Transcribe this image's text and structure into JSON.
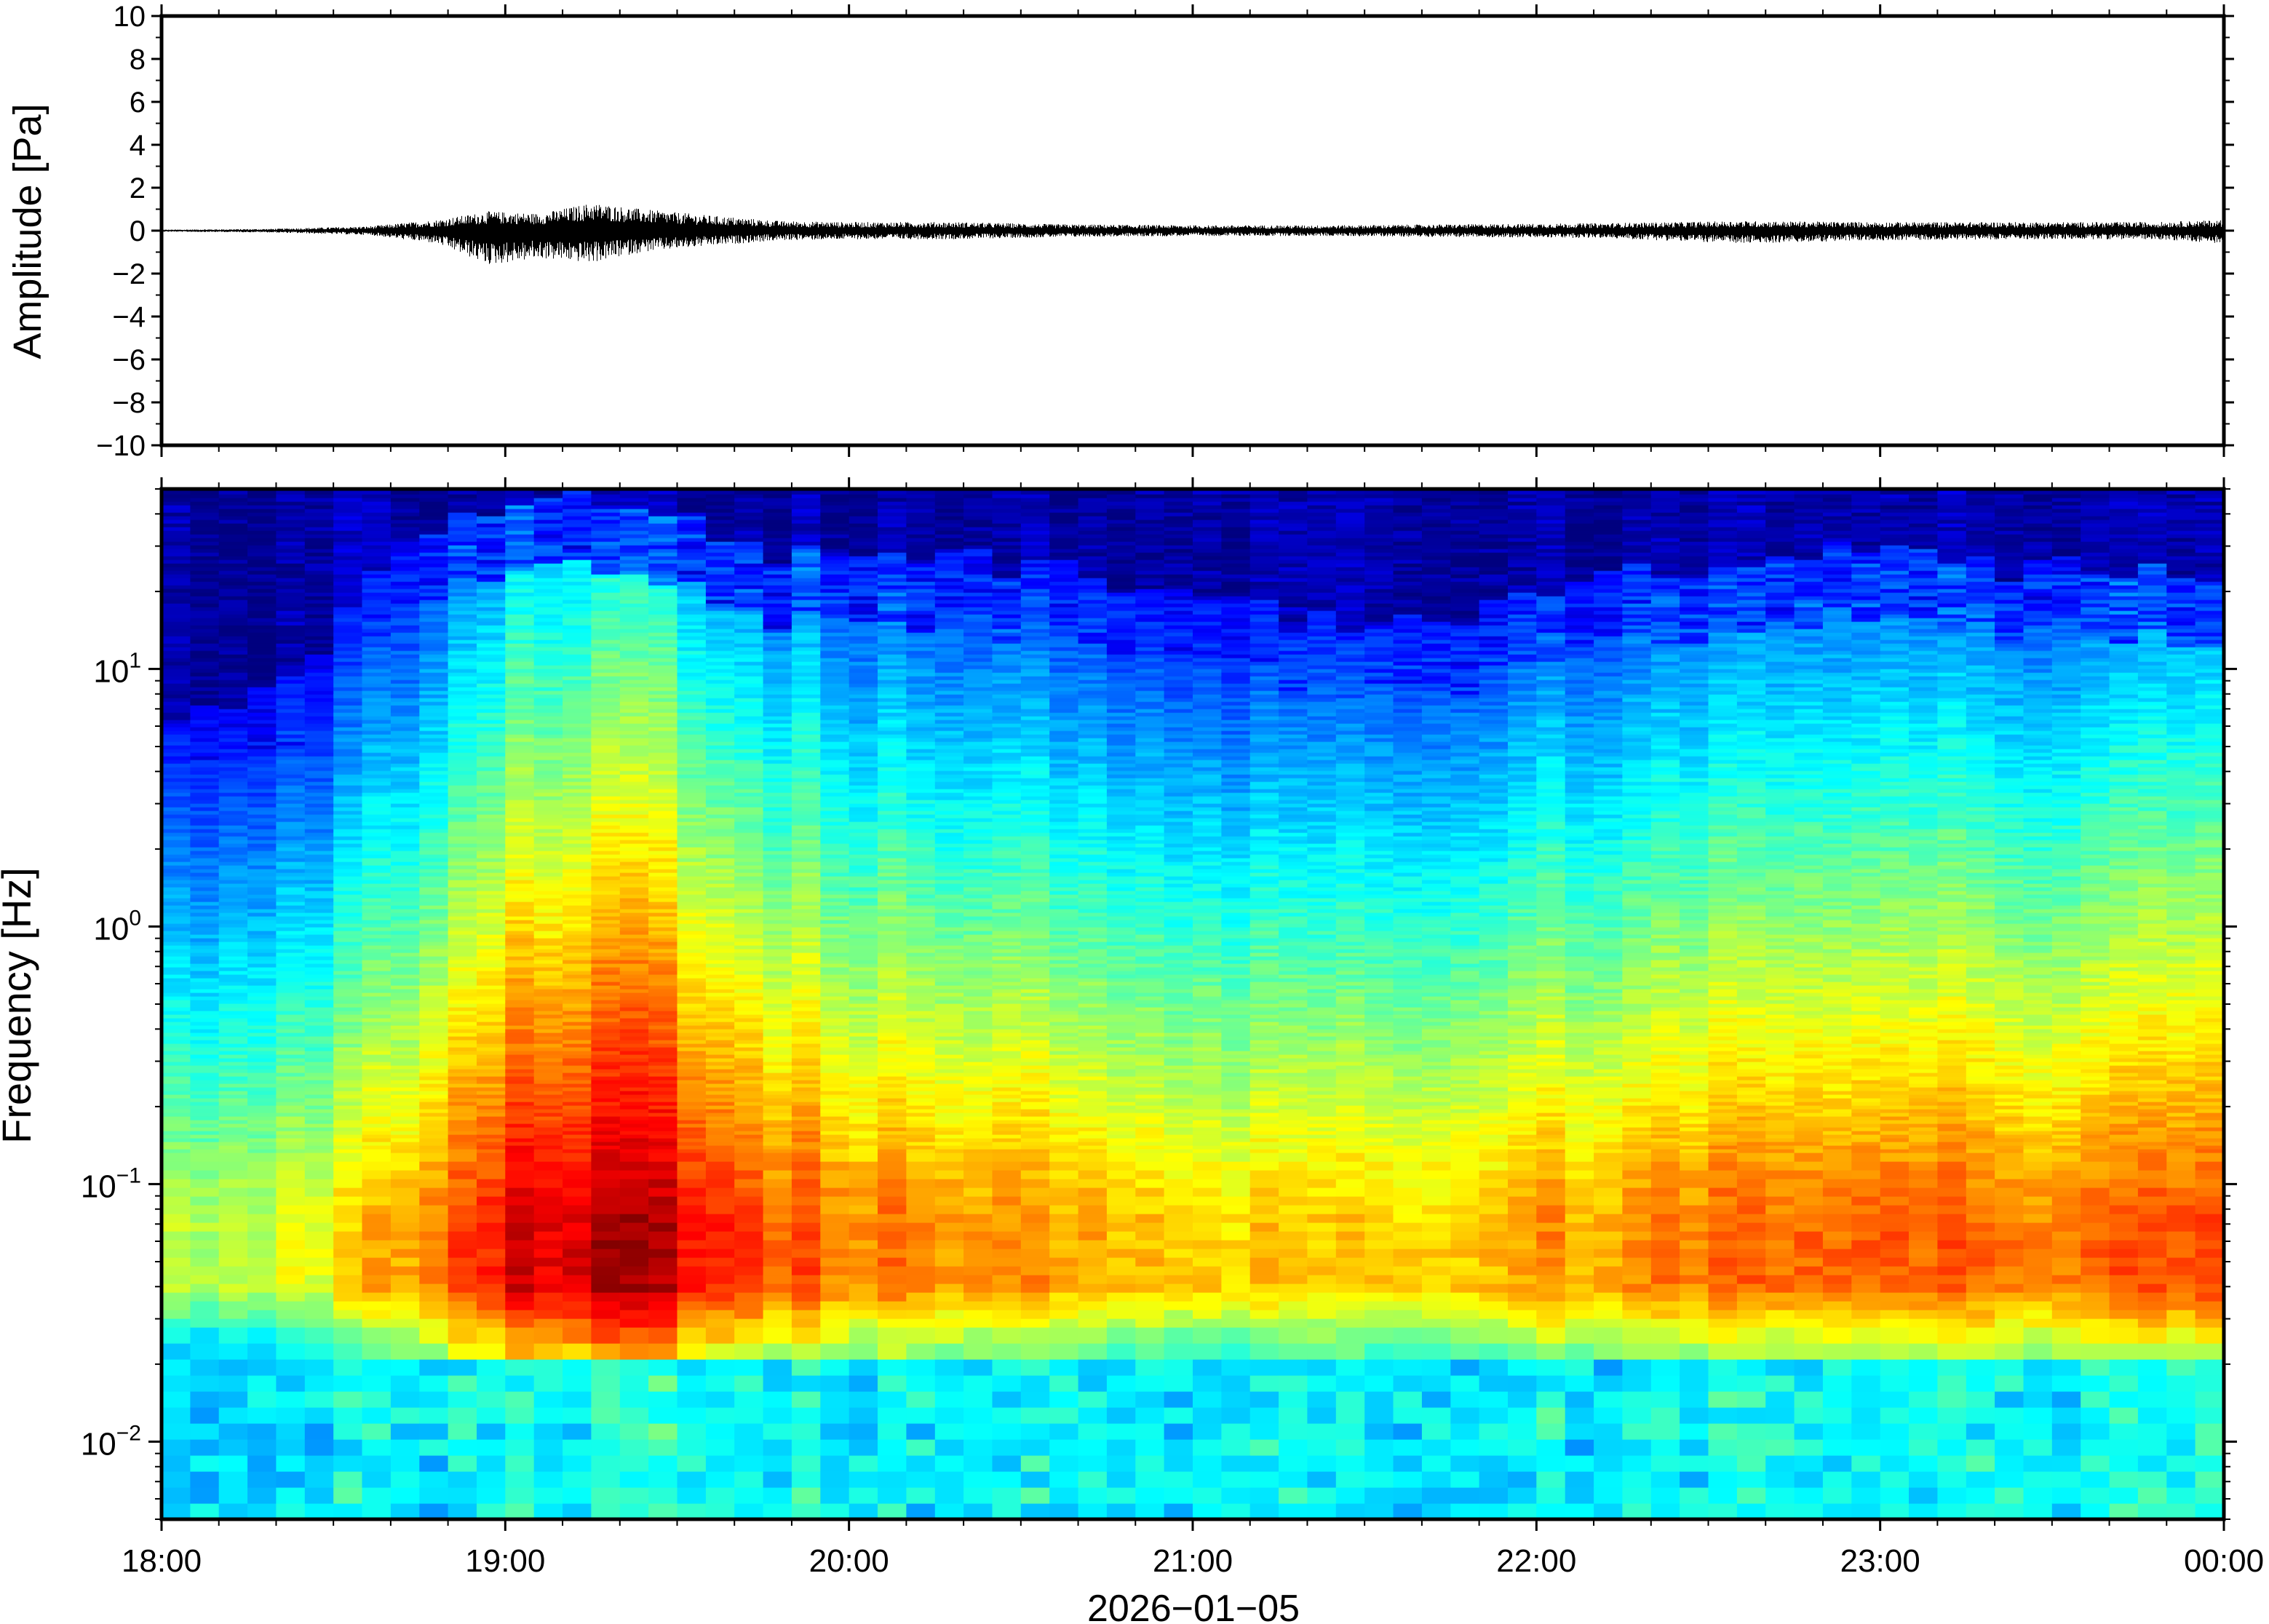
{
  "chart_data": [
    {
      "type": "line",
      "panel": "waveform",
      "ylabel": "Amplitude [Pa]",
      "ylim": [
        -10,
        10
      ],
      "yticks": [
        {
          "value": 10,
          "label": "10"
        },
        {
          "value": 8,
          "label": "8"
        },
        {
          "value": 6,
          "label": "6"
        },
        {
          "value": 4,
          "label": "4"
        },
        {
          "value": 2,
          "label": "2"
        },
        {
          "value": 0,
          "label": "0"
        },
        {
          "value": -2,
          "label": "−2"
        },
        {
          "value": -4,
          "label": "−4"
        },
        {
          "value": -6,
          "label": "−6"
        },
        {
          "value": -8,
          "label": "−8"
        },
        {
          "value": -10,
          "label": "−10"
        }
      ],
      "x_range": [
        "18:00",
        "00:00"
      ],
      "envelope": {
        "time_h": [
          18.0,
          18.3,
          18.6,
          18.8,
          18.95,
          19.1,
          19.25,
          19.4,
          19.6,
          19.8,
          20.0,
          20.3,
          20.6,
          21.0,
          21.4,
          21.8,
          22.2,
          22.6,
          23.0,
          23.4,
          23.8,
          24.0
        ],
        "pos": [
          0.05,
          0.08,
          0.2,
          0.5,
          0.9,
          0.8,
          1.3,
          1.0,
          0.7,
          0.45,
          0.4,
          0.4,
          0.3,
          0.25,
          0.25,
          0.3,
          0.35,
          0.45,
          0.4,
          0.4,
          0.4,
          0.5
        ],
        "neg": [
          -0.05,
          -0.08,
          -0.2,
          -0.6,
          -1.6,
          -1.3,
          -1.5,
          -1.0,
          -0.7,
          -0.45,
          -0.4,
          -0.4,
          -0.3,
          -0.25,
          -0.25,
          -0.3,
          -0.35,
          -0.6,
          -0.45,
          -0.4,
          -0.4,
          -0.6
        ]
      },
      "line_color": "#000000"
    },
    {
      "type": "heatmap",
      "panel": "spectrogram",
      "ylabel": "Frequency [Hz]",
      "xlabel": "2026−01−05",
      "y_scale": "log",
      "ylim": [
        0.005,
        50
      ],
      "yticks": [
        {
          "value": 10,
          "base": "10",
          "exp": "1"
        },
        {
          "value": 1,
          "base": "10",
          "exp": "0"
        },
        {
          "value": 0.1,
          "base": "10",
          "exp": "−1"
        },
        {
          "value": 0.01,
          "base": "10",
          "exp": "−2"
        }
      ],
      "xticks": [
        {
          "value": 18,
          "label": "18:00"
        },
        {
          "value": 19,
          "label": "19:00"
        },
        {
          "value": 20,
          "label": "20:00"
        },
        {
          "value": 21,
          "label": "21:00"
        },
        {
          "value": 22,
          "label": "22:00"
        },
        {
          "value": 23,
          "label": "23:00"
        },
        {
          "value": 24,
          "label": "00:00"
        }
      ],
      "colormap": "jet",
      "colormap_stops": [
        "#00007f",
        "#0000ff",
        "#007fff",
        "#00ffff",
        "#7fff7f",
        "#ffff00",
        "#ff7f00",
        "#ff0000",
        "#7f0000"
      ],
      "relative_power_profile": {
        "time_h": [
          18.0,
          18.5,
          18.8,
          19.1,
          19.4,
          19.7,
          20.0,
          20.5,
          21.0,
          21.5,
          22.0,
          22.5,
          23.0,
          23.5,
          24.0
        ],
        "top_cutoff_hz": [
          5,
          12,
          40,
          45,
          45,
          30,
          28,
          25,
          18,
          14,
          18,
          26,
          28,
          24,
          26
        ],
        "peak_intensity": [
          0.55,
          0.62,
          0.78,
          0.92,
          0.95,
          0.82,
          0.76,
          0.74,
          0.68,
          0.66,
          0.72,
          0.76,
          0.78,
          0.76,
          0.8
        ]
      }
    }
  ]
}
